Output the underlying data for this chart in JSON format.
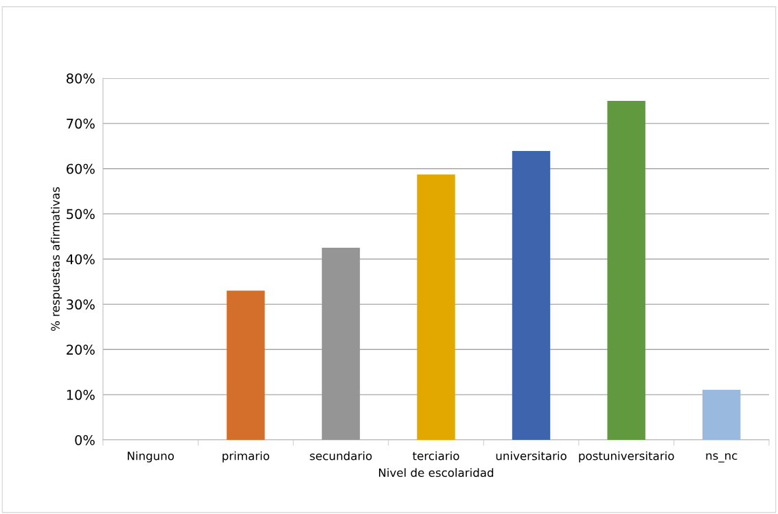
{
  "chart_data": {
    "type": "bar",
    "xlabel": "Nivel de escolaridad",
    "ylabel": "% respuestas afirmativas",
    "categories": [
      "Ninguno",
      "primario",
      "secundario",
      "terciario",
      "universitario",
      "postuniversitario",
      "ns_nc"
    ],
    "values": [
      0,
      33,
      42.5,
      58.7,
      63.9,
      75,
      11.1
    ],
    "colors": [
      "#d46f2b",
      "#d46f2b",
      "#959595",
      "#e2a800",
      "#3d64ad",
      "#619a3e",
      "#9ab9df"
    ],
    "ylim": [
      0,
      80
    ],
    "yticks": [
      {
        "value": 0,
        "label": "0%"
      },
      {
        "value": 10,
        "label": "10%"
      },
      {
        "value": 20,
        "label": "20%"
      },
      {
        "value": 30,
        "label": "30%"
      },
      {
        "value": 40,
        "label": "40%"
      },
      {
        "value": 50,
        "label": "50%"
      },
      {
        "value": 60,
        "label": "60%"
      },
      {
        "value": 70,
        "label": "70%"
      },
      {
        "value": 80,
        "label": "80%"
      }
    ],
    "grid": "y",
    "legend": false
  }
}
